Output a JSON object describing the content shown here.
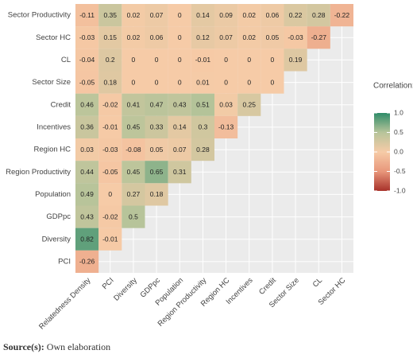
{
  "chart_data": {
    "type": "heatmap",
    "rows": [
      "Sector Productivity",
      "Sector HC",
      "CL",
      "Sector Size",
      "Credit",
      "Incentives",
      "Region HC",
      "Region Productivity",
      "Population",
      "GDPpc",
      "Diversity",
      "PCI"
    ],
    "columns": [
      "Relatedness Density",
      "PCI",
      "Diversity",
      "GDPpc",
      "Population",
      "Region Productivity",
      "Region HC",
      "Incentives",
      "Credit",
      "Sector Size",
      "CL",
      "Sector HC"
    ],
    "values": [
      [
        -0.11,
        0.35,
        0.02,
        0.07,
        0,
        0.14,
        0.09,
        0.02,
        0.06,
        0.22,
        0.28,
        -0.22
      ],
      [
        -0.03,
        0.15,
        0.02,
        0.06,
        0,
        0.12,
        0.07,
        0.02,
        0.05,
        -0.03,
        -0.27,
        null
      ],
      [
        -0.04,
        0.2,
        0,
        0,
        0,
        -0.01,
        0,
        0,
        0,
        0.19,
        null,
        null
      ],
      [
        -0.05,
        0.18,
        0,
        0,
        0,
        0.01,
        0,
        0,
        0,
        null,
        null,
        null
      ],
      [
        0.46,
        -0.02,
        0.41,
        0.47,
        0.43,
        0.51,
        0.03,
        0.25,
        null,
        null,
        null,
        null
      ],
      [
        0.36,
        -0.01,
        0.45,
        0.33,
        0.14,
        0.3,
        -0.13,
        null,
        null,
        null,
        null,
        null
      ],
      [
        0.03,
        -0.03,
        -0.08,
        0.05,
        0.07,
        0.28,
        null,
        null,
        null,
        null,
        null,
        null
      ],
      [
        0.44,
        -0.05,
        0.45,
        0.65,
        0.31,
        null,
        null,
        null,
        null,
        null,
        null,
        null
      ],
      [
        0.49,
        0,
        0.27,
        0.18,
        null,
        null,
        null,
        null,
        null,
        null,
        null,
        null
      ],
      [
        0.43,
        -0.02,
        0.5,
        null,
        null,
        null,
        null,
        null,
        null,
        null,
        null,
        null
      ],
      [
        0.82,
        -0.01,
        null,
        null,
        null,
        null,
        null,
        null,
        null,
        null,
        null,
        null
      ],
      [
        -0.26,
        null,
        null,
        null,
        null,
        null,
        null,
        null,
        null,
        null,
        null,
        null
      ]
    ],
    "legend_title": "Correlation:",
    "colorbar_ticks": [
      {
        "value": -1,
        "label": "-1.0"
      },
      {
        "value": -0.5,
        "label": "-0.5"
      },
      {
        "value": 0,
        "label": "0.0"
      },
      {
        "value": 0.5,
        "label": "0.5"
      },
      {
        "value": 1,
        "label": "1.0"
      }
    ],
    "colorbar_colors": [
      "#a8322a",
      "#e8977b",
      "#f6cba7",
      "#b7c49a",
      "#2f8c69"
    ],
    "source_label": "Source(s):",
    "source_text": "Own elaboration"
  }
}
